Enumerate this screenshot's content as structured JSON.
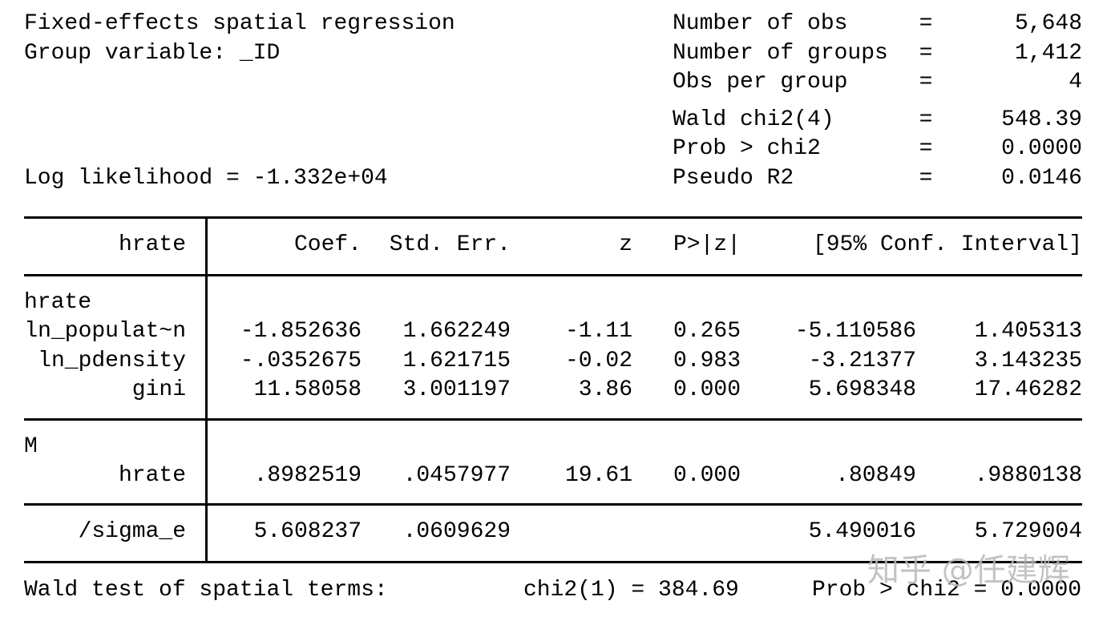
{
  "title": "Fixed-effects spatial regression",
  "group_variable": "Group variable: _ID",
  "log_likelihood": "Log likelihood = -1.332e+04",
  "stats": [
    {
      "label": "Number of obs",
      "eq": "=",
      "value": "5,648"
    },
    {
      "label": "Number of groups",
      "eq": "=",
      "value": "1,412"
    },
    {
      "label": "Obs per group",
      "eq": "=",
      "value": "4"
    },
    {
      "label": "Wald chi2(4)",
      "eq": "=",
      "value": "548.39"
    },
    {
      "label": "Prob > chi2",
      "eq": "=",
      "value": "0.0000"
    },
    {
      "label": "Pseudo R2",
      "eq": "=",
      "value": "0.0146"
    }
  ],
  "table": {
    "header": {
      "depvar": "hrate",
      "coef": "Coef.",
      "stderr": "Std. Err.",
      "z": "z",
      "p": "P>|z|",
      "ci": "[95% Conf. Interval]"
    },
    "sections": [
      {
        "rows": [
          {
            "var": "hrate",
            "coef": "",
            "stderr": "",
            "z": "",
            "p": "",
            "lo": "",
            "hi": ""
          },
          {
            "var": "ln_populat~n",
            "coef": "-1.852636",
            "stderr": "1.662249",
            "z": "-1.11",
            "p": "0.265",
            "lo": "-5.110586",
            "hi": "1.405313"
          },
          {
            "var": "ln_pdensity",
            "coef": "-.0352675",
            "stderr": "1.621715",
            "z": "-0.02",
            "p": "0.983",
            "lo": "-3.21377",
            "hi": "3.143235"
          },
          {
            "var": "gini",
            "coef": "11.58058",
            "stderr": "3.001197",
            "z": "3.86",
            "p": "0.000",
            "lo": "5.698348",
            "hi": "17.46282"
          }
        ]
      },
      {
        "rows": [
          {
            "var": "M",
            "coef": "",
            "stderr": "",
            "z": "",
            "p": "",
            "lo": "",
            "hi": ""
          },
          {
            "var": "hrate",
            "coef": ".8982519",
            "stderr": ".0457977",
            "z": "19.61",
            "p": "0.000",
            "lo": ".80849",
            "hi": ".9880138"
          }
        ]
      },
      {
        "rows": [
          {
            "var": "/sigma_e",
            "coef": "5.608237",
            "stderr": ".0609629",
            "z": "",
            "p": "",
            "lo": "5.490016",
            "hi": "5.729004"
          }
        ]
      }
    ]
  },
  "footer": {
    "left": "Wald test of spatial terms:",
    "mid": "chi2(1) = 384.69",
    "right": "Prob > chi2 = 0.0000"
  },
  "watermark": "知乎 @任建辉",
  "colors": {
    "text": "#000000",
    "background": "#ffffff",
    "watermark": "#b9b9b9"
  }
}
